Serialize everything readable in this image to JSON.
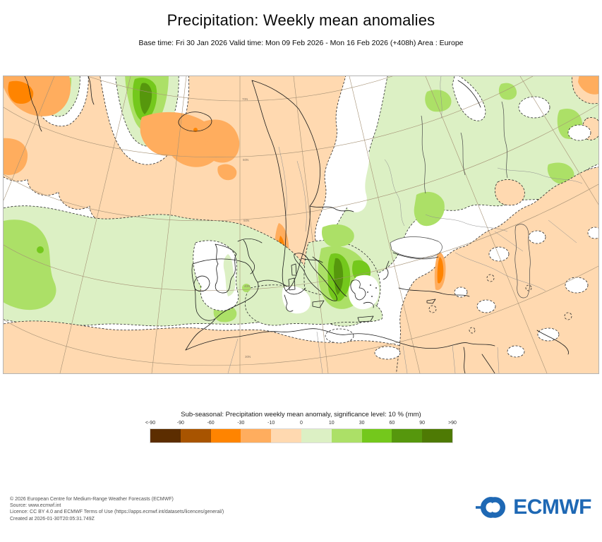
{
  "header": {
    "title": "Precipitation: Weekly mean anomalies",
    "subtitle": "Base time: Fri 30 Jan 2026 Valid time: Mon 09 Feb 2026 - Mon 16 Feb 2026 (+408h) Area : Europe"
  },
  "map": {
    "graticule_labels": [
      "70N",
      "60N",
      "50N",
      "40N",
      "30N"
    ]
  },
  "legend": {
    "title": "Sub-seasonal: Precipitation weekly mean anomaly, significance level: 10 % (mm)",
    "ticks": [
      "<-90",
      "-90",
      "-60",
      "-30",
      "-10",
      "0",
      "10",
      "30",
      "60",
      "90",
      ">90"
    ],
    "colors": [
      "#5C2D00",
      "#A85400",
      "#FF8400",
      "#FFAD5E",
      "#FFD9B0",
      "#DCF0C4",
      "#ACE067",
      "#74C81C",
      "#56970D",
      "#4E7A04"
    ]
  },
  "footer": {
    "lines": [
      "© 2026 European Centre for Medium-Range Weather Forecasts (ECMWF)",
      "Source: www.ecmwf.int",
      "Licence: CC BY 4.0 and ECMWF Terms of Use (https://apps.ecmwf.int/datasets/licences/general/)",
      "Created at 2026-01-30T20:05:31.749Z"
    ],
    "logo_text": "ECMWF",
    "logo_color": "#1E68B4"
  }
}
